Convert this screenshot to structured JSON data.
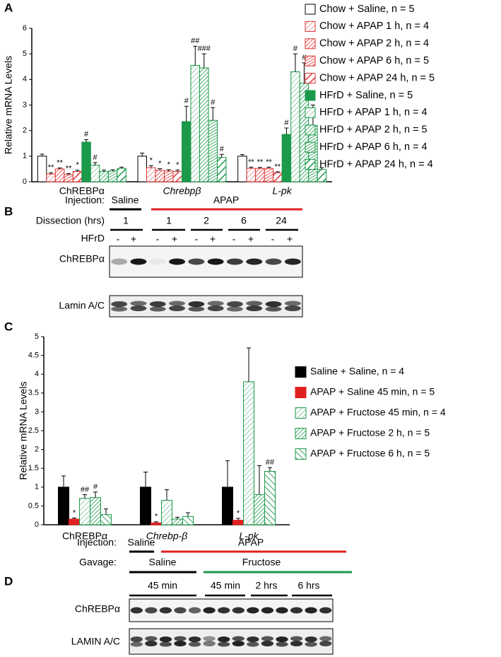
{
  "chart_data": [
    {
      "type": "bar",
      "panel_label": "A",
      "y_label": "Relative mRNA Levels",
      "categories": [
        "ChREBPα",
        "Chrebpβ",
        "L-pk"
      ],
      "category_style": [
        "normal",
        "italic",
        "italic"
      ],
      "ylim": [
        0,
        6
      ],
      "yticks": [
        0,
        1,
        2,
        3,
        4,
        5,
        6
      ],
      "legend": "right",
      "series": [
        {
          "name": "Chow + Saline, n = 5",
          "color": "#000000",
          "pattern": "open",
          "values": [
            1.0,
            1.0,
            1.0
          ],
          "errors": [
            0.08,
            0.12,
            0.06
          ],
          "annotations": [
            null,
            null,
            null
          ]
        },
        {
          "name": "Chow + APAP 1 h, n = 4",
          "color": "#e03030",
          "pattern": "hatch-light",
          "values": [
            0.3,
            0.55,
            0.52
          ],
          "errors": [
            0.05,
            0.08,
            0.05
          ],
          "annotations": [
            "**",
            "*",
            "**"
          ]
        },
        {
          "name": "Chow + APAP 2 h, n = 4",
          "color": "#e03030",
          "pattern": "hatch-dense",
          "values": [
            0.5,
            0.45,
            0.52
          ],
          "errors": [
            0.04,
            0.06,
            0.04
          ],
          "annotations": [
            "**",
            "*",
            "**"
          ]
        },
        {
          "name": "Chow + APAP 6 h, n = 5",
          "color": "#e03030",
          "pattern": "hatch-cross",
          "values": [
            0.28,
            0.42,
            0.52
          ],
          "errors": [
            0.04,
            0.05,
            0.05
          ],
          "annotations": [
            "**",
            "*",
            "**"
          ]
        },
        {
          "name": "Chow + APAP 24 h, n = 5",
          "color": "#e03030",
          "pattern": "hatch-wide",
          "values": [
            0.4,
            0.4,
            0.35
          ],
          "errors": [
            0.05,
            0.06,
            0.04
          ],
          "annotations": [
            "*",
            "*",
            "**"
          ]
        },
        {
          "name": "HFrD + Saline, n = 5",
          "color": "#1a9a4a",
          "pattern": "solid",
          "values": [
            1.55,
            2.35,
            1.85
          ],
          "errors": [
            0.1,
            0.6,
            0.25
          ],
          "annotations": [
            "#",
            "#",
            "#"
          ]
        },
        {
          "name": "HFrD + APAP 1 h, n = 4",
          "color": "#1a9a4a",
          "pattern": "hatch-light",
          "values": [
            0.65,
            4.55,
            4.3
          ],
          "errors": [
            0.1,
            0.75,
            0.7
          ],
          "annotations": [
            "#",
            "##",
            "#"
          ]
        },
        {
          "name": "HFrD + APAP 2 h, n = 5",
          "color": "#1a9a4a",
          "pattern": "hatch-dense",
          "values": [
            0.4,
            4.45,
            3.85
          ],
          "errors": [
            0.06,
            0.55,
            0.8
          ],
          "annotations": [
            null,
            "###",
            "#"
          ]
        },
        {
          "name": "HFrD + APAP 6 h, n = 4",
          "color": "#1a9a4a",
          "pattern": "hatch-cross",
          "values": [
            0.42,
            2.4,
            2.2
          ],
          "errors": [
            0.05,
            0.5,
            0.8
          ],
          "annotations": [
            null,
            "#",
            null
          ]
        },
        {
          "name": "HFrD + APAP 24 h, n = 4",
          "color": "#1a9a4a",
          "pattern": "hatch-wide",
          "values": [
            0.52,
            0.95,
            0.48
          ],
          "errors": [
            0.05,
            0.12,
            0.07
          ],
          "annotations": [
            null,
            "#",
            null
          ]
        }
      ]
    },
    {
      "type": "bar",
      "panel_label": "C",
      "y_label": "Relative mRNA Levels",
      "categories": [
        "ChREBPα",
        "Chrebp-β",
        "L-pk"
      ],
      "category_style": [
        "normal",
        "italic",
        "italic"
      ],
      "ylim": [
        0,
        5
      ],
      "yticks": [
        0,
        0.5,
        1,
        1.5,
        2,
        2.5,
        3,
        3.5,
        4,
        4.5,
        5
      ],
      "legend": "right",
      "series": [
        {
          "name": "Saline + Saline, n = 4",
          "color": "#000000",
          "pattern": "solid",
          "values": [
            1.0,
            1.0,
            1.0
          ],
          "errors": [
            0.3,
            0.4,
            0.7
          ],
          "annotations": [
            null,
            null,
            null
          ]
        },
        {
          "name": "APAP + Saline 45 min, n = 5",
          "color": "#e02020",
          "pattern": "solid",
          "values": [
            0.15,
            0.05,
            0.12
          ],
          "errors": [
            0.03,
            0.03,
            0.05
          ],
          "annotations": [
            "*",
            "*",
            "*"
          ]
        },
        {
          "name": "APAP + Fructose 45 min, n = 4",
          "color": "#1a9a4a",
          "pattern": "hatch-light",
          "values": [
            0.7,
            0.65,
            3.8
          ],
          "errors": [
            0.1,
            0.28,
            0.9
          ],
          "annotations": [
            "##",
            null,
            null
          ]
        },
        {
          "name": "APAP + Fructose 2 h, n = 5",
          "color": "#1a9a4a",
          "pattern": "hatch-dense",
          "values": [
            0.72,
            0.15,
            0.8
          ],
          "errors": [
            0.15,
            0.05,
            0.77
          ],
          "annotations": [
            "#",
            null,
            null
          ]
        },
        {
          "name": "APAP + Fructose 6 h, n = 5",
          "color": "#1a9a4a",
          "pattern": "hatch-back",
          "values": [
            0.27,
            0.22,
            1.42
          ],
          "errors": [
            0.15,
            0.1,
            0.1
          ],
          "annotations": [
            null,
            null,
            "##"
          ]
        }
      ]
    }
  ],
  "blots": [
    {
      "panel_label": "B",
      "injection_label": "Injection:",
      "injection_groups": [
        "Saline",
        "APAP"
      ],
      "time_label": "Dissection (hrs)",
      "times": [
        "1",
        "1",
        "2",
        "6",
        "24"
      ],
      "diet_label": "HFrD",
      "diet_signs": [
        "-",
        "+",
        "-",
        "+",
        "-",
        "+",
        "-",
        "+",
        "-",
        "+"
      ],
      "rows": [
        "ChREBPα",
        "Lamin A/C"
      ]
    },
    {
      "panel_label": "D",
      "injection_label": "Injection:",
      "injection_groups": [
        "Saline",
        "APAP"
      ],
      "gavage_label": "Gavage:",
      "gavage_groups": [
        "Saline",
        "Fructose"
      ],
      "times": [
        "45 min",
        "45 min",
        "2 hrs",
        "6 hrs"
      ],
      "rows": [
        "ChREBPα",
        "LAMIN A/C"
      ]
    }
  ]
}
